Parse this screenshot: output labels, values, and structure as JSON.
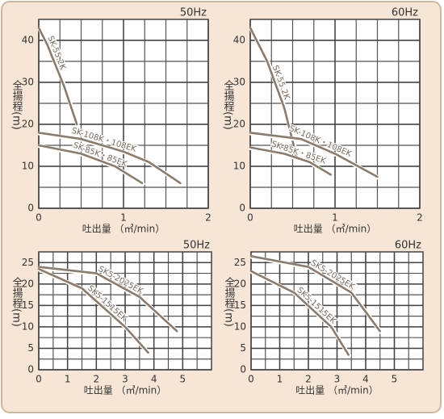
{
  "chart_data": [
    {
      "type": "line",
      "title": "50Hz",
      "x_label": "吐出量 （㎥/min）",
      "y_label": "全揚程(m)",
      "xlim": [
        0,
        2
      ],
      "xticks": [
        0,
        1,
        2
      ],
      "ylim": [
        0,
        45
      ],
      "yticks": [
        0,
        10,
        20,
        30,
        40
      ],
      "grid": true,
      "series": [
        {
          "name": "SK-55.2K",
          "color": "#8c7b6b",
          "x": [
            0,
            0.1,
            0.2,
            0.3,
            0.4,
            0.45
          ],
          "values": [
            43,
            39,
            34,
            29,
            23,
            20
          ]
        },
        {
          "name": "SK-108K・108EK",
          "color": "#8c7b6b",
          "x": [
            0,
            0.5,
            1,
            1.3,
            1.67
          ],
          "values": [
            18,
            16.5,
            13.5,
            11,
            6
          ]
        },
        {
          "name": "SK-85K・85EK",
          "color": "#8c7b6b",
          "x": [
            0,
            0.5,
            0.9,
            1.22
          ],
          "values": [
            15,
            13,
            10,
            6
          ]
        }
      ]
    },
    {
      "type": "line",
      "title": "60Hz",
      "x_label": "吐出量 （㎥/min）",
      "y_label": "全揚程(m)",
      "xlim": [
        0,
        2
      ],
      "xticks": [
        0,
        1,
        2
      ],
      "ylim": [
        0,
        45
      ],
      "yticks": [
        0,
        10,
        20,
        30,
        40
      ],
      "grid": true,
      "series": [
        {
          "name": "SK-55.2K",
          "color": "#8c7b6b",
          "x": [
            0,
            0.2,
            0.4,
            0.55
          ],
          "values": [
            43,
            35,
            24,
            12
          ]
        },
        {
          "name": "SK-108K・108EK",
          "color": "#8c7b6b",
          "x": [
            0,
            0.6,
            1,
            1.5
          ],
          "values": [
            18,
            16.5,
            13,
            7.5
          ]
        },
        {
          "name": "SK-85K・85EK",
          "color": "#8c7b6b",
          "x": [
            0,
            0.4,
            0.7,
            0.95
          ],
          "values": [
            14.5,
            13,
            11,
            8
          ]
        }
      ]
    },
    {
      "type": "line",
      "title": "50Hz",
      "x_label": "吐出量 （㎥/min）",
      "y_label": "全揚程(m)",
      "xlim": [
        0,
        6
      ],
      "xticks": [
        0,
        1,
        2,
        3,
        4,
        5
      ],
      "ylim": [
        0,
        27.5
      ],
      "yticks": [
        0,
        5,
        10,
        15,
        20,
        25
      ],
      "grid": true,
      "series": [
        {
          "name": "SK5-2025EK",
          "color": "#8c7b6b",
          "x": [
            0,
            2,
            3.5,
            4.8
          ],
          "values": [
            24,
            22.5,
            17,
            9
          ]
        },
        {
          "name": "SK5-1515EK",
          "color": "#8c7b6b",
          "x": [
            0,
            1.5,
            3,
            3.8
          ],
          "values": [
            23.5,
            19,
            10,
            4
          ]
        }
      ]
    },
    {
      "type": "line",
      "title": "60Hz",
      "x_label": "吐出量 （㎥/min）",
      "y_label": "全揚程(m)",
      "xlim": [
        0,
        6
      ],
      "xticks": [
        0,
        1,
        2,
        3,
        4,
        5
      ],
      "ylim": [
        0,
        27.5
      ],
      "yticks": [
        0,
        5,
        10,
        15,
        20,
        25
      ],
      "grid": true,
      "series": [
        {
          "name": "SK5-2025EK",
          "color": "#8c7b6b",
          "x": [
            0,
            2,
            3.5,
            4.5
          ],
          "values": [
            26.5,
            24,
            18,
            9
          ]
        },
        {
          "name": "SK5-1515EK",
          "color": "#8c7b6b",
          "x": [
            0,
            1.5,
            2.8,
            3.4
          ],
          "values": [
            23,
            18,
            10,
            3.5
          ]
        }
      ]
    }
  ]
}
